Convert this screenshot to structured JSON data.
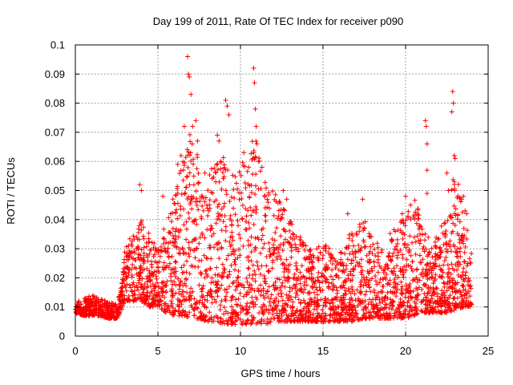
{
  "chart_data": {
    "type": "scatter",
    "title": "Day 199 of 2011, Rate Of TEC Index for receiver p090",
    "xlabel": "GPS time / hours",
    "ylabel": "ROTI / TECUs",
    "xlim": [
      0,
      25
    ],
    "ylim": [
      0,
      0.1
    ],
    "xticks": [
      "0",
      "5",
      "10",
      "15",
      "20",
      "25"
    ],
    "yticks": [
      "0",
      "0.01",
      "0.02",
      "0.03",
      "0.04",
      "0.05",
      "0.06",
      "0.07",
      "0.08",
      "0.09",
      "0.1"
    ],
    "grid": true,
    "marker": "+",
    "color": "#ff0000",
    "envelope": {
      "description": "approximate upper/lower envelope of the dense ROTI point cloud",
      "x": [
        0,
        0.5,
        1,
        1.5,
        2,
        2.5,
        2.8,
        3,
        3.5,
        4,
        4.5,
        5,
        5.5,
        6,
        6.5,
        7,
        7.5,
        8,
        8.5,
        9,
        9.5,
        10,
        10.5,
        11,
        11.5,
        12,
        12.5,
        13,
        13.5,
        14,
        14.5,
        15,
        15.5,
        16,
        16.5,
        17,
        17.5,
        18,
        18.5,
        19,
        19.5,
        20,
        20.5,
        21,
        21.5,
        22,
        22.5,
        23,
        23.5,
        24
      ],
      "upper": [
        0.012,
        0.013,
        0.014,
        0.013,
        0.012,
        0.011,
        0.018,
        0.03,
        0.036,
        0.04,
        0.035,
        0.03,
        0.04,
        0.05,
        0.06,
        0.072,
        0.065,
        0.055,
        0.06,
        0.065,
        0.055,
        0.06,
        0.065,
        0.07,
        0.055,
        0.05,
        0.045,
        0.04,
        0.035,
        0.032,
        0.03,
        0.032,
        0.03,
        0.028,
        0.035,
        0.038,
        0.04,
        0.035,
        0.03,
        0.035,
        0.038,
        0.042,
        0.048,
        0.04,
        0.032,
        0.035,
        0.045,
        0.058,
        0.045,
        0.03
      ],
      "lower": [
        0.008,
        0.007,
        0.007,
        0.007,
        0.006,
        0.006,
        0.009,
        0.012,
        0.012,
        0.012,
        0.01,
        0.01,
        0.008,
        0.007,
        0.007,
        0.006,
        0.006,
        0.005,
        0.005,
        0.004,
        0.004,
        0.004,
        0.004,
        0.004,
        0.004,
        0.005,
        0.005,
        0.005,
        0.005,
        0.005,
        0.005,
        0.005,
        0.005,
        0.005,
        0.005,
        0.005,
        0.006,
        0.006,
        0.006,
        0.006,
        0.006,
        0.006,
        0.007,
        0.008,
        0.008,
        0.008,
        0.008,
        0.009,
        0.01,
        0.01
      ]
    },
    "spikes": [
      {
        "x": 3.9,
        "y": 0.052
      },
      {
        "x": 4.0,
        "y": 0.05
      },
      {
        "x": 5.3,
        "y": 0.048
      },
      {
        "x": 6.2,
        "y": 0.059
      },
      {
        "x": 6.4,
        "y": 0.062
      },
      {
        "x": 6.6,
        "y": 0.072
      },
      {
        "x": 6.8,
        "y": 0.096
      },
      {
        "x": 6.85,
        "y": 0.09
      },
      {
        "x": 6.9,
        "y": 0.089
      },
      {
        "x": 7.0,
        "y": 0.083
      },
      {
        "x": 7.1,
        "y": 0.072
      },
      {
        "x": 7.3,
        "y": 0.074
      },
      {
        "x": 7.4,
        "y": 0.067
      },
      {
        "x": 8.6,
        "y": 0.069
      },
      {
        "x": 8.7,
        "y": 0.067
      },
      {
        "x": 8.8,
        "y": 0.06
      },
      {
        "x": 9.1,
        "y": 0.081
      },
      {
        "x": 9.2,
        "y": 0.079
      },
      {
        "x": 9.3,
        "y": 0.076
      },
      {
        "x": 10.2,
        "y": 0.063
      },
      {
        "x": 10.5,
        "y": 0.058
      },
      {
        "x": 10.8,
        "y": 0.092
      },
      {
        "x": 10.85,
        "y": 0.087
      },
      {
        "x": 10.9,
        "y": 0.078
      },
      {
        "x": 10.95,
        "y": 0.072
      },
      {
        "x": 11.0,
        "y": 0.066
      },
      {
        "x": 11.1,
        "y": 0.06
      },
      {
        "x": 11.3,
        "y": 0.058
      },
      {
        "x": 12.6,
        "y": 0.05
      },
      {
        "x": 12.8,
        "y": 0.047
      },
      {
        "x": 16.5,
        "y": 0.042
      },
      {
        "x": 17.4,
        "y": 0.047
      },
      {
        "x": 19.8,
        "y": 0.042
      },
      {
        "x": 20.0,
        "y": 0.048
      },
      {
        "x": 20.3,
        "y": 0.045
      },
      {
        "x": 21.2,
        "y": 0.074
      },
      {
        "x": 21.25,
        "y": 0.072
      },
      {
        "x": 21.3,
        "y": 0.066
      },
      {
        "x": 21.3,
        "y": 0.057
      },
      {
        "x": 21.3,
        "y": 0.049
      },
      {
        "x": 22.5,
        "y": 0.056
      },
      {
        "x": 22.6,
        "y": 0.05
      },
      {
        "x": 22.8,
        "y": 0.077
      },
      {
        "x": 22.85,
        "y": 0.084
      },
      {
        "x": 22.9,
        "y": 0.08
      },
      {
        "x": 22.95,
        "y": 0.062
      },
      {
        "x": 23.0,
        "y": 0.061
      },
      {
        "x": 23.5,
        "y": 0.048
      },
      {
        "x": 23.6,
        "y": 0.043
      },
      {
        "x": 23.7,
        "y": 0.042
      }
    ]
  }
}
